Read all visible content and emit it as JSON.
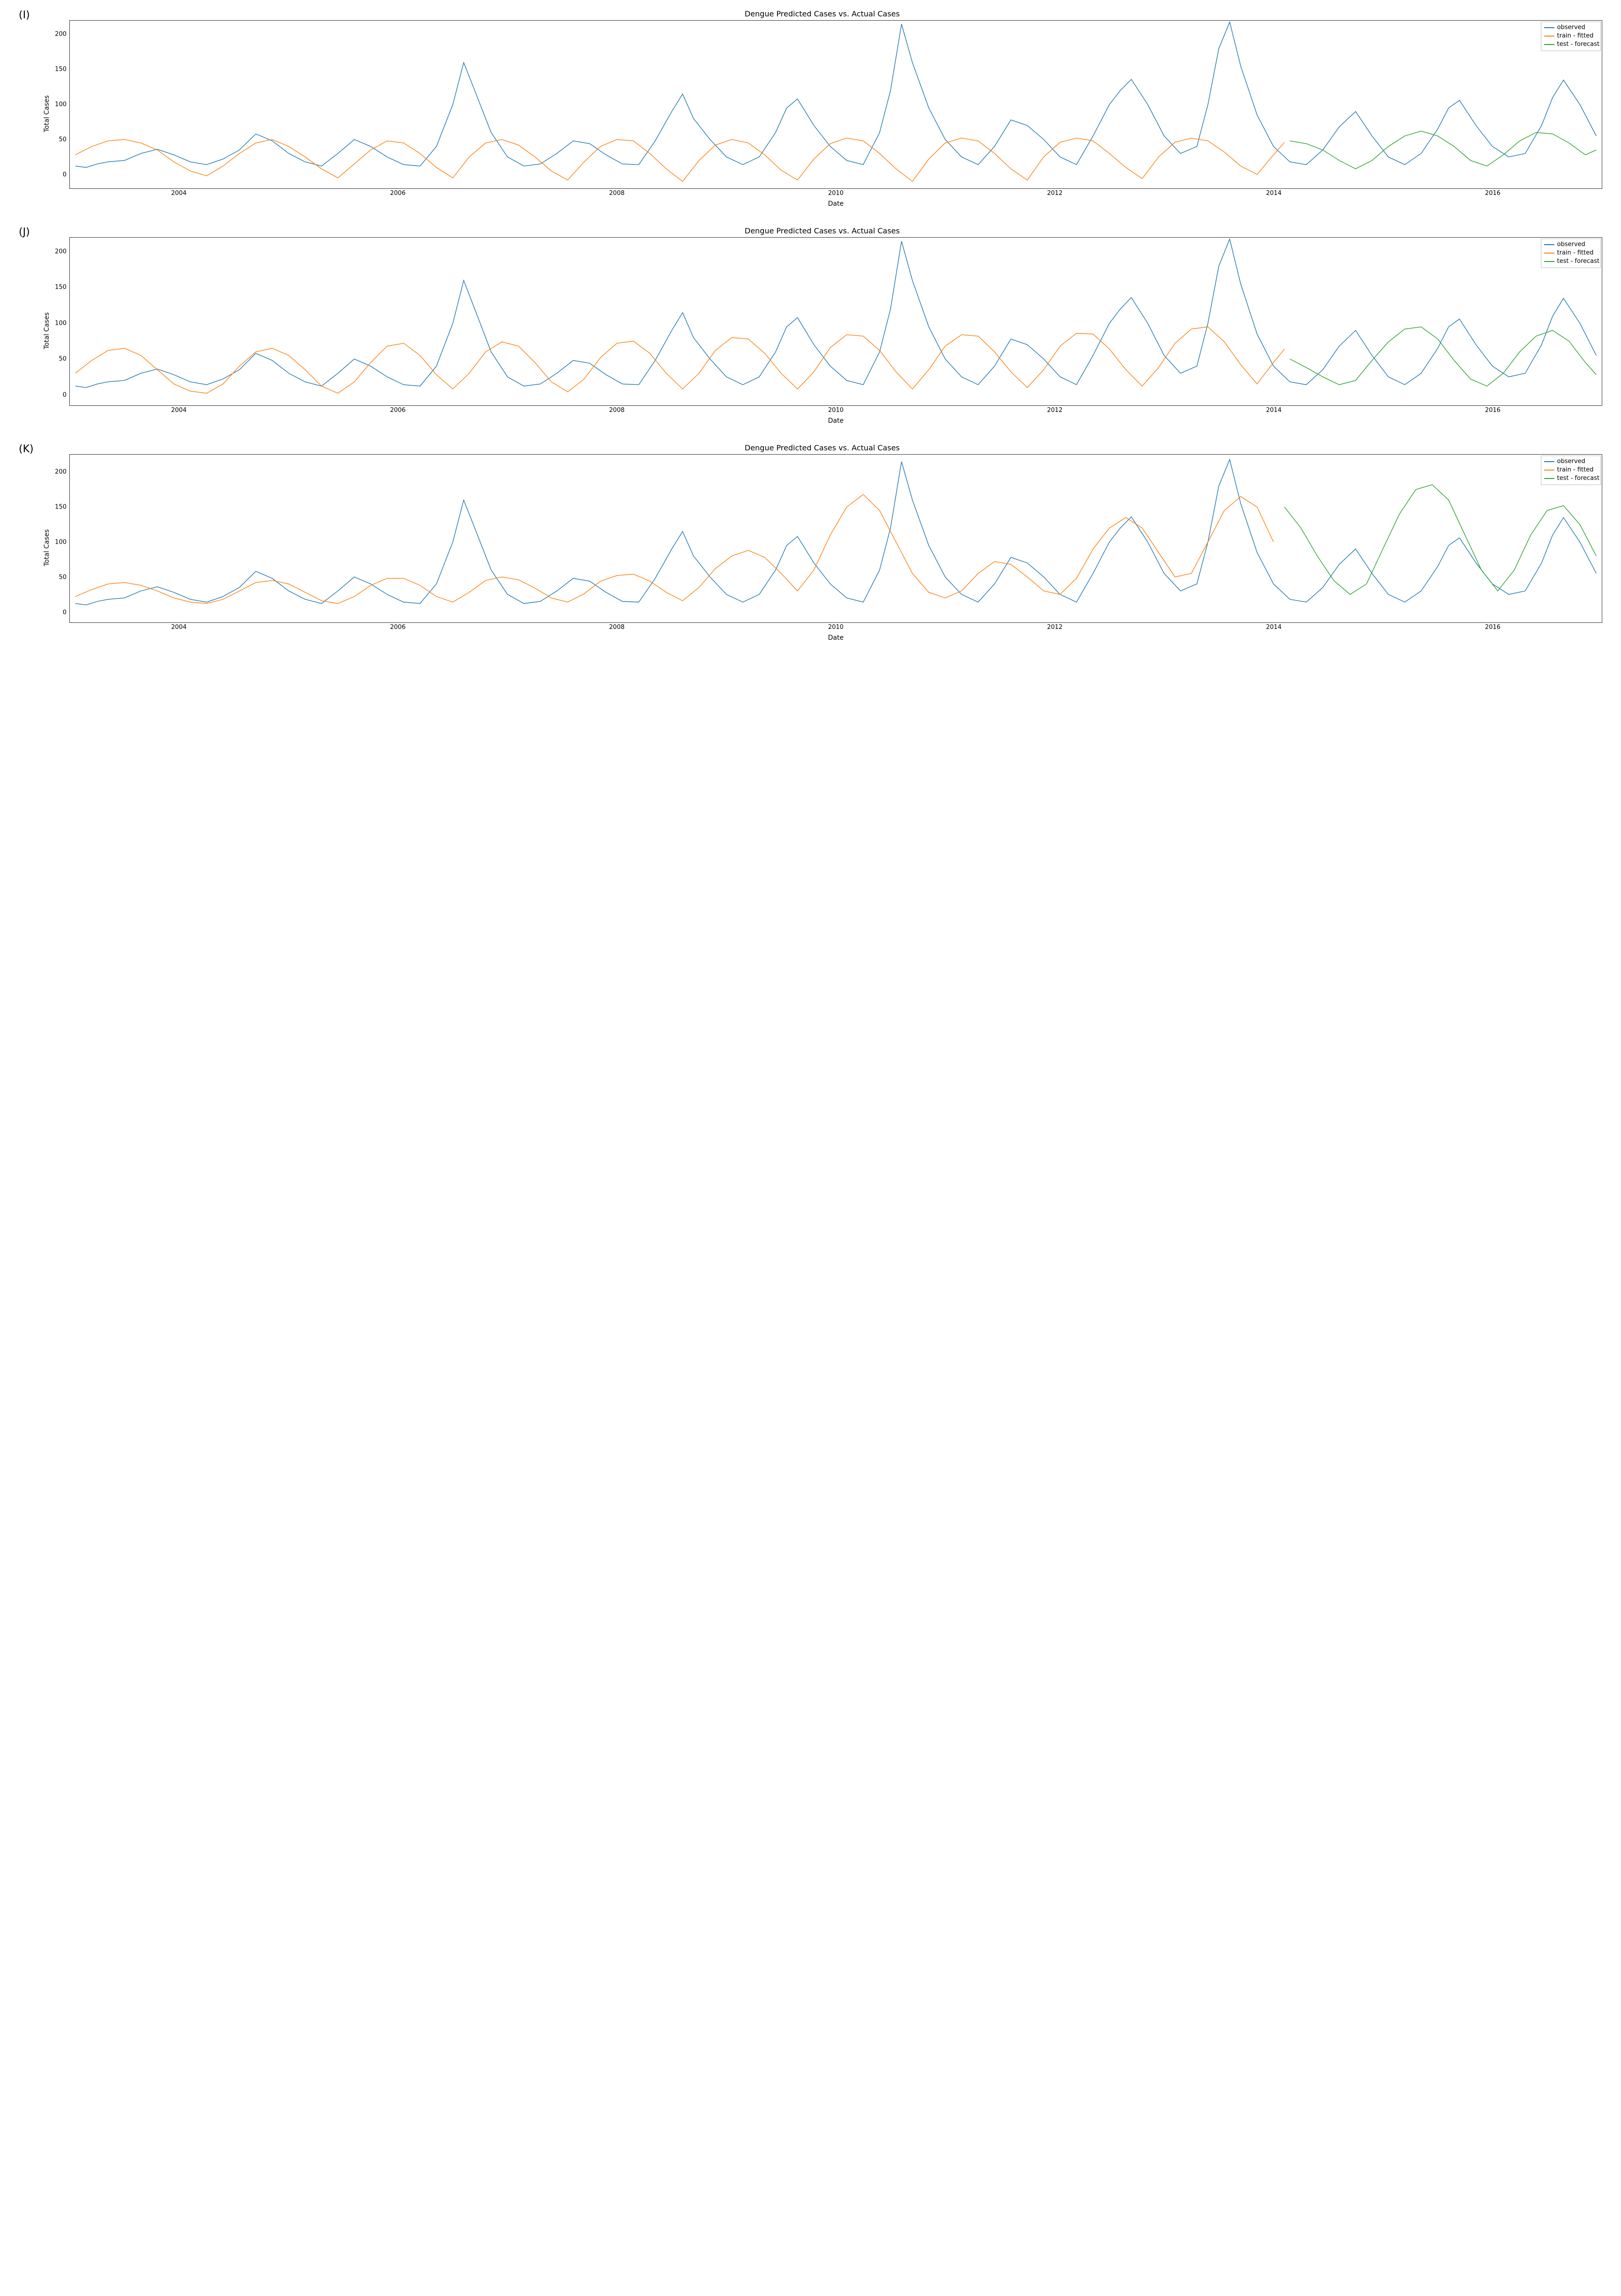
{
  "global": {
    "xlabel": "Date",
    "ylabel": "Total Cases",
    "title": "Dengue Predicted Cases vs. Actual Cases",
    "x_start": 2003.0,
    "x_end": 2017.0,
    "xticks": [
      2004,
      2006,
      2008,
      2010,
      2012,
      2014,
      2016
    ],
    "colors": {
      "observed": "#1f77b4",
      "train": "#ff7f0e",
      "test": "#2ca02c",
      "axis": "#333333",
      "background": "#ffffff",
      "legend_border": "#bfbfbf"
    },
    "legend": {
      "observed": "observed",
      "train": "train - fitted",
      "test": "test - forecast"
    },
    "fonts": {
      "title_size": 16,
      "label_size": 14,
      "tick_size": 13,
      "panel_label_size": 22
    },
    "line_width": 1.4
  },
  "panels": [
    {
      "label": "(I)",
      "ylim": [
        -20,
        220
      ],
      "yticks": [
        0,
        50,
        100,
        150,
        200
      ],
      "observed_x": [
        2003.05,
        2003.15,
        2003.25,
        2003.35,
        2003.5,
        2003.65,
        2003.8,
        2003.95,
        2004.1,
        2004.25,
        2004.4,
        2004.55,
        2004.7,
        2004.85,
        2005.0,
        2005.15,
        2005.3,
        2005.45,
        2005.6,
        2005.75,
        2005.9,
        2006.05,
        2006.2,
        2006.35,
        2006.5,
        2006.6,
        2006.7,
        2006.85,
        2007.0,
        2007.15,
        2007.3,
        2007.45,
        2007.6,
        2007.75,
        2007.9,
        2008.05,
        2008.2,
        2008.35,
        2008.5,
        2008.6,
        2008.7,
        2008.85,
        2009.0,
        2009.15,
        2009.3,
        2009.45,
        2009.55,
        2009.65,
        2009.8,
        2009.95,
        2010.1,
        2010.25,
        2010.4,
        2010.5,
        2010.6,
        2010.7,
        2010.85,
        2011.0,
        2011.15,
        2011.3,
        2011.45,
        2011.6,
        2011.75,
        2011.9,
        2012.05,
        2012.2,
        2012.35,
        2012.5,
        2012.6,
        2012.7,
        2012.85,
        2013.0,
        2013.15,
        2013.3,
        2013.4,
        2013.5,
        2013.6,
        2013.7,
        2013.85,
        2014.0,
        2014.15,
        2014.3,
        2014.45,
        2014.6,
        2014.75,
        2014.9,
        2015.05,
        2015.2,
        2015.35,
        2015.5,
        2015.6,
        2015.7,
        2015.85,
        2016.0,
        2016.15,
        2016.3,
        2016.45,
        2016.55,
        2016.65,
        2016.8,
        2016.95
      ],
      "observed_y": [
        12,
        10,
        15,
        18,
        20,
        30,
        36,
        28,
        18,
        14,
        22,
        35,
        58,
        48,
        30,
        18,
        12,
        30,
        50,
        40,
        25,
        14,
        12,
        40,
        100,
        160,
        120,
        60,
        25,
        12,
        15,
        30,
        48,
        44,
        28,
        15,
        14,
        48,
        90,
        115,
        80,
        50,
        25,
        14,
        25,
        60,
        95,
        108,
        70,
        40,
        20,
        14,
        60,
        120,
        215,
        160,
        95,
        50,
        25,
        14,
        40,
        78,
        70,
        50,
        25,
        14,
        55,
        100,
        120,
        136,
        100,
        55,
        30,
        40,
        100,
        180,
        218,
        155,
        85,
        40,
        18,
        14,
        35,
        68,
        90,
        55,
        25,
        14,
        30,
        65,
        95,
        106,
        70,
        40,
        25,
        30,
        70,
        110,
        135,
        100,
        55
      ],
      "train_x": [
        2003.05,
        2003.2,
        2003.35,
        2003.5,
        2003.65,
        2003.8,
        2003.95,
        2004.1,
        2004.25,
        2004.4,
        2004.55,
        2004.7,
        2004.85,
        2005.0,
        2005.15,
        2005.3,
        2005.45,
        2005.6,
        2005.75,
        2005.9,
        2006.05,
        2006.2,
        2006.35,
        2006.5,
        2006.65,
        2006.8,
        2006.95,
        2007.1,
        2007.25,
        2007.4,
        2007.55,
        2007.7,
        2007.85,
        2008.0,
        2008.15,
        2008.3,
        2008.45,
        2008.6,
        2008.75,
        2008.9,
        2009.05,
        2009.2,
        2009.35,
        2009.5,
        2009.65,
        2009.8,
        2009.95,
        2010.1,
        2010.25,
        2010.4,
        2010.55,
        2010.7,
        2010.85,
        2011.0,
        2011.15,
        2011.3,
        2011.45,
        2011.6,
        2011.75,
        2011.9,
        2012.05,
        2012.2,
        2012.35,
        2012.5,
        2012.65,
        2012.8,
        2012.95,
        2013.1,
        2013.25,
        2013.4,
        2013.55,
        2013.7,
        2013.85,
        2014.0,
        2014.1
      ],
      "train_y": [
        28,
        40,
        48,
        50,
        45,
        35,
        18,
        5,
        -2,
        12,
        30,
        45,
        50,
        40,
        25,
        8,
        -5,
        15,
        35,
        48,
        45,
        30,
        10,
        -5,
        25,
        45,
        50,
        42,
        25,
        5,
        -8,
        18,
        40,
        50,
        48,
        30,
        8,
        -10,
        20,
        42,
        50,
        45,
        28,
        6,
        -8,
        22,
        44,
        52,
        48,
        30,
        8,
        -10,
        22,
        45,
        52,
        48,
        30,
        8,
        -8,
        25,
        46,
        52,
        48,
        30,
        10,
        -6,
        25,
        46,
        52,
        48,
        32,
        12,
        0,
        28,
        46
      ],
      "test_x": [
        2014.15,
        2014.3,
        2014.45,
        2014.6,
        2014.75,
        2014.9,
        2015.05,
        2015.2,
        2015.35,
        2015.5,
        2015.65,
        2015.8,
        2015.95,
        2016.1,
        2016.25,
        2016.4,
        2016.55,
        2016.7,
        2016.85,
        2016.95
      ],
      "test_y": [
        48,
        44,
        35,
        20,
        8,
        20,
        40,
        55,
        62,
        55,
        40,
        20,
        12,
        28,
        48,
        60,
        58,
        45,
        28,
        35
      ]
    },
    {
      "label": "(J)",
      "ylim": [
        -15,
        220
      ],
      "yticks": [
        0,
        50,
        100,
        150,
        200
      ],
      "observed_x": [
        2003.05,
        2003.15,
        2003.25,
        2003.35,
        2003.5,
        2003.65,
        2003.8,
        2003.95,
        2004.1,
        2004.25,
        2004.4,
        2004.55,
        2004.7,
        2004.85,
        2005.0,
        2005.15,
        2005.3,
        2005.45,
        2005.6,
        2005.75,
        2005.9,
        2006.05,
        2006.2,
        2006.35,
        2006.5,
        2006.6,
        2006.7,
        2006.85,
        2007.0,
        2007.15,
        2007.3,
        2007.45,
        2007.6,
        2007.75,
        2007.9,
        2008.05,
        2008.2,
        2008.35,
        2008.5,
        2008.6,
        2008.7,
        2008.85,
        2009.0,
        2009.15,
        2009.3,
        2009.45,
        2009.55,
        2009.65,
        2009.8,
        2009.95,
        2010.1,
        2010.25,
        2010.4,
        2010.5,
        2010.6,
        2010.7,
        2010.85,
        2011.0,
        2011.15,
        2011.3,
        2011.45,
        2011.6,
        2011.75,
        2011.9,
        2012.05,
        2012.2,
        2012.35,
        2012.5,
        2012.6,
        2012.7,
        2012.85,
        2013.0,
        2013.15,
        2013.3,
        2013.4,
        2013.5,
        2013.6,
        2013.7,
        2013.85,
        2014.0,
        2014.15,
        2014.3,
        2014.45,
        2014.6,
        2014.75,
        2014.9,
        2015.05,
        2015.2,
        2015.35,
        2015.5,
        2015.6,
        2015.7,
        2015.85,
        2016.0,
        2016.15,
        2016.3,
        2016.45,
        2016.55,
        2016.65,
        2016.8,
        2016.95
      ],
      "observed_y": [
        12,
        10,
        15,
        18,
        20,
        30,
        36,
        28,
        18,
        14,
        22,
        35,
        58,
        48,
        30,
        18,
        12,
        30,
        50,
        40,
        25,
        14,
        12,
        40,
        100,
        160,
        120,
        60,
        25,
        12,
        15,
        30,
        48,
        44,
        28,
        15,
        14,
        48,
        90,
        115,
        80,
        50,
        25,
        14,
        25,
        60,
        95,
        108,
        70,
        40,
        20,
        14,
        60,
        120,
        215,
        160,
        95,
        50,
        25,
        14,
        40,
        78,
        70,
        50,
        25,
        14,
        55,
        100,
        120,
        136,
        100,
        55,
        30,
        40,
        100,
        180,
        218,
        155,
        85,
        40,
        18,
        14,
        35,
        68,
        90,
        55,
        25,
        14,
        30,
        65,
        95,
        106,
        70,
        40,
        25,
        30,
        70,
        110,
        135,
        100,
        55
      ],
      "train_x": [
        2003.05,
        2003.2,
        2003.35,
        2003.5,
        2003.65,
        2003.8,
        2003.95,
        2004.1,
        2004.25,
        2004.4,
        2004.55,
        2004.7,
        2004.85,
        2005.0,
        2005.15,
        2005.3,
        2005.45,
        2005.6,
        2005.75,
        2005.9,
        2006.05,
        2006.2,
        2006.35,
        2006.5,
        2006.65,
        2006.8,
        2006.95,
        2007.1,
        2007.25,
        2007.4,
        2007.55,
        2007.7,
        2007.85,
        2008.0,
        2008.15,
        2008.3,
        2008.45,
        2008.6,
        2008.75,
        2008.9,
        2009.05,
        2009.2,
        2009.35,
        2009.5,
        2009.65,
        2009.8,
        2009.95,
        2010.1,
        2010.25,
        2010.4,
        2010.55,
        2010.7,
        2010.85,
        2011.0,
        2011.15,
        2011.3,
        2011.45,
        2011.6,
        2011.75,
        2011.9,
        2012.05,
        2012.2,
        2012.35,
        2012.5,
        2012.65,
        2012.8,
        2012.95,
        2013.1,
        2013.25,
        2013.4,
        2013.55,
        2013.7,
        2013.85,
        2014.0,
        2014.1
      ],
      "train_y": [
        30,
        48,
        62,
        65,
        55,
        35,
        15,
        5,
        2,
        15,
        40,
        60,
        65,
        55,
        35,
        12,
        2,
        18,
        45,
        68,
        72,
        55,
        28,
        8,
        30,
        60,
        74,
        68,
        45,
        18,
        4,
        22,
        52,
        72,
        75,
        58,
        30,
        8,
        30,
        62,
        80,
        78,
        58,
        30,
        8,
        32,
        66,
        84,
        82,
        62,
        32,
        8,
        35,
        68,
        84,
        82,
        60,
        32,
        10,
        35,
        68,
        86,
        85,
        64,
        35,
        12,
        38,
        72,
        92,
        95,
        74,
        42,
        15,
        45,
        64
      ],
      "test_x": [
        2014.15,
        2014.3,
        2014.45,
        2014.6,
        2014.75,
        2014.9,
        2015.05,
        2015.2,
        2015.35,
        2015.5,
        2015.65,
        2015.8,
        2015.95,
        2016.1,
        2016.25,
        2016.4,
        2016.55,
        2016.7,
        2016.85,
        2016.95
      ],
      "test_y": [
        50,
        38,
        25,
        14,
        20,
        48,
        74,
        92,
        95,
        78,
        48,
        22,
        12,
        30,
        60,
        82,
        90,
        75,
        45,
        28
      ]
    },
    {
      "label": "(K)",
      "ylim": [
        -15,
        225
      ],
      "yticks": [
        0,
        50,
        100,
        150,
        200
      ],
      "observed_x": [
        2003.05,
        2003.15,
        2003.25,
        2003.35,
        2003.5,
        2003.65,
        2003.8,
        2003.95,
        2004.1,
        2004.25,
        2004.4,
        2004.55,
        2004.7,
        2004.85,
        2005.0,
        2005.15,
        2005.3,
        2005.45,
        2005.6,
        2005.75,
        2005.9,
        2006.05,
        2006.2,
        2006.35,
        2006.5,
        2006.6,
        2006.7,
        2006.85,
        2007.0,
        2007.15,
        2007.3,
        2007.45,
        2007.6,
        2007.75,
        2007.9,
        2008.05,
        2008.2,
        2008.35,
        2008.5,
        2008.6,
        2008.7,
        2008.85,
        2009.0,
        2009.15,
        2009.3,
        2009.45,
        2009.55,
        2009.65,
        2009.8,
        2009.95,
        2010.1,
        2010.25,
        2010.4,
        2010.5,
        2010.6,
        2010.7,
        2010.85,
        2011.0,
        2011.15,
        2011.3,
        2011.45,
        2011.6,
        2011.75,
        2011.9,
        2012.05,
        2012.2,
        2012.35,
        2012.5,
        2012.6,
        2012.7,
        2012.85,
        2013.0,
        2013.15,
        2013.3,
        2013.4,
        2013.5,
        2013.6,
        2013.7,
        2013.85,
        2014.0,
        2014.15,
        2014.3,
        2014.45,
        2014.6,
        2014.75,
        2014.9,
        2015.05,
        2015.2,
        2015.35,
        2015.5,
        2015.6,
        2015.7,
        2015.85,
        2016.0,
        2016.15,
        2016.3,
        2016.45,
        2016.55,
        2016.65,
        2016.8,
        2016.95
      ],
      "observed_y": [
        12,
        10,
        15,
        18,
        20,
        30,
        36,
        28,
        18,
        14,
        22,
        35,
        58,
        48,
        30,
        18,
        12,
        30,
        50,
        40,
        25,
        14,
        12,
        40,
        100,
        160,
        120,
        60,
        25,
        12,
        15,
        30,
        48,
        44,
        28,
        15,
        14,
        48,
        90,
        115,
        80,
        50,
        25,
        14,
        25,
        60,
        95,
        108,
        70,
        40,
        20,
        14,
        60,
        120,
        215,
        160,
        95,
        50,
        25,
        14,
        40,
        78,
        70,
        50,
        25,
        14,
        55,
        100,
        120,
        136,
        100,
        55,
        30,
        40,
        100,
        180,
        218,
        155,
        85,
        40,
        18,
        14,
        35,
        68,
        90,
        55,
        25,
        14,
        30,
        65,
        95,
        106,
        70,
        40,
        25,
        30,
        70,
        110,
        135,
        100,
        55
      ],
      "train_x": [
        2003.05,
        2003.2,
        2003.35,
        2003.5,
        2003.65,
        2003.8,
        2003.95,
        2004.1,
        2004.25,
        2004.4,
        2004.55,
        2004.7,
        2004.85,
        2005.0,
        2005.15,
        2005.3,
        2005.45,
        2005.6,
        2005.75,
        2005.9,
        2006.05,
        2006.2,
        2006.35,
        2006.5,
        2006.65,
        2006.8,
        2006.95,
        2007.1,
        2007.25,
        2007.4,
        2007.55,
        2007.7,
        2007.85,
        2008.0,
        2008.15,
        2008.3,
        2008.45,
        2008.6,
        2008.75,
        2008.9,
        2009.05,
        2009.2,
        2009.35,
        2009.5,
        2009.65,
        2009.8,
        2009.95,
        2010.1,
        2010.25,
        2010.4,
        2010.55,
        2010.7,
        2010.85,
        2011.0,
        2011.15,
        2011.3,
        2011.45,
        2011.6,
        2011.75,
        2011.9,
        2012.05,
        2012.2,
        2012.35,
        2012.5,
        2012.65,
        2012.8,
        2012.95,
        2013.1,
        2013.25,
        2013.4,
        2013.55,
        2013.7,
        2013.85,
        2014.0
      ],
      "train_y": [
        22,
        32,
        40,
        42,
        38,
        30,
        20,
        14,
        12,
        18,
        30,
        42,
        45,
        40,
        28,
        16,
        12,
        22,
        38,
        48,
        48,
        38,
        22,
        14,
        28,
        45,
        50,
        46,
        34,
        20,
        14,
        26,
        44,
        52,
        54,
        44,
        28,
        16,
        35,
        62,
        80,
        88,
        78,
        55,
        30,
        60,
        110,
        150,
        168,
        145,
        100,
        55,
        28,
        20,
        30,
        55,
        72,
        68,
        50,
        30,
        25,
        48,
        90,
        120,
        135,
        120,
        85,
        50,
        55,
        100,
        145,
        165,
        150,
        100
      ],
      "test_x": [
        2014.1,
        2014.25,
        2014.4,
        2014.55,
        2014.7,
        2014.85,
        2015.0,
        2015.15,
        2015.3,
        2015.45,
        2015.6,
        2015.75,
        2015.9,
        2016.05,
        2016.2,
        2016.35,
        2016.5,
        2016.65,
        2016.8,
        2016.95
      ],
      "test_y": [
        150,
        120,
        80,
        45,
        25,
        40,
        90,
        140,
        175,
        182,
        160,
        110,
        60,
        30,
        60,
        110,
        145,
        152,
        125,
        80
      ]
    }
  ]
}
